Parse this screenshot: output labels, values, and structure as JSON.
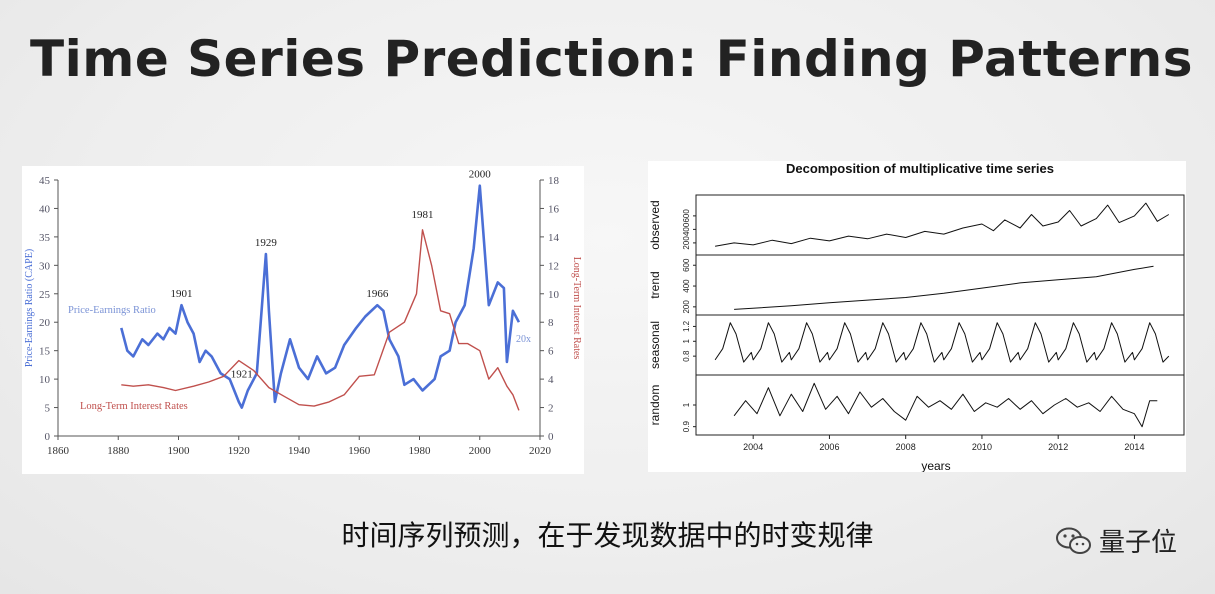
{
  "slide": {
    "title": "Time Series Prediction: Finding Patterns",
    "caption": "时间序列预测，在于发现数据中的时变规律",
    "brand": "量子位",
    "brand_icon": "wechat-icon"
  },
  "chart_data": [
    {
      "type": "line",
      "title": "",
      "xlabel": "",
      "ylabel": "Price-Earnings Ratio (CAPE)",
      "ylabel_right": "Long-Term Interest Rates",
      "xlim": [
        1860,
        2020
      ],
      "ylim": [
        0,
        45
      ],
      "ylim_right": [
        0,
        18
      ],
      "x_ticks": [
        1860,
        1880,
        1900,
        1920,
        1940,
        1960,
        1980,
        2000,
        2020
      ],
      "y_ticks": [
        0,
        5,
        10,
        15,
        20,
        25,
        30,
        35,
        40,
        45
      ],
      "y_ticks_right": [
        0,
        2,
        4,
        6,
        8,
        10,
        12,
        14,
        16,
        18
      ],
      "colors": {
        "pe": "#4b6fd6",
        "rates": "#c0504d"
      },
      "series": [
        {
          "name": "Price-Earnings Ratio",
          "axis": "left",
          "x": [
            1881,
            1883,
            1885,
            1888,
            1890,
            1893,
            1895,
            1897,
            1899,
            1901,
            1903,
            1905,
            1907,
            1909,
            1911,
            1914,
            1917,
            1920,
            1921,
            1923,
            1926,
            1929,
            1930,
            1932,
            1934,
            1937,
            1940,
            1943,
            1946,
            1949,
            1952,
            1955,
            1959,
            1962,
            1966,
            1968,
            1970,
            1973,
            1975,
            1978,
            1981,
            1983,
            1985,
            1987,
            1990,
            1992,
            1995,
            1998,
            2000,
            2002,
            2003,
            2006,
            2008,
            2009,
            2011,
            2013
          ],
          "values": [
            19,
            15,
            14,
            17,
            16,
            18,
            17,
            19,
            18,
            23,
            20,
            18,
            13,
            15,
            14,
            11,
            10,
            6,
            5,
            8,
            11,
            32,
            22,
            6,
            11,
            17,
            12,
            10,
            14,
            11,
            12,
            16,
            19,
            21,
            23,
            22,
            17,
            14,
            9,
            10,
            8,
            9,
            10,
            14,
            15,
            20,
            23,
            33,
            44,
            30,
            23,
            27,
            26,
            13,
            22,
            20
          ]
        },
        {
          "name": "Long-Term Interest Rates",
          "axis": "right",
          "x": [
            1881,
            1885,
            1890,
            1895,
            1899,
            1905,
            1910,
            1915,
            1920,
            1925,
            1930,
            1935,
            1940,
            1945,
            1950,
            1955,
            1960,
            1965,
            1970,
            1975,
            1979,
            1981,
            1984,
            1987,
            1990,
            1993,
            1996,
            2000,
            2003,
            2006,
            2009,
            2011,
            2013
          ],
          "values": [
            3.6,
            3.5,
            3.6,
            3.4,
            3.2,
            3.5,
            3.8,
            4.2,
            5.3,
            4.6,
            3.4,
            2.8,
            2.2,
            2.1,
            2.4,
            2.9,
            4.2,
            4.3,
            7.3,
            8.0,
            10.0,
            14.5,
            12.0,
            8.8,
            8.6,
            6.5,
            6.5,
            6.0,
            4.0,
            4.8,
            3.5,
            2.9,
            1.8
          ]
        }
      ],
      "annotations": [
        {
          "x": 1901,
          "label": "1901"
        },
        {
          "x": 1921,
          "label": "1921"
        },
        {
          "x": 1929,
          "label": "1929"
        },
        {
          "x": 1966,
          "label": "1966"
        },
        {
          "x": 1981,
          "label": "1981"
        },
        {
          "x": 2000,
          "label": "2000"
        }
      ],
      "series_labels": [
        {
          "series": 0,
          "text": "Price-Earnings Ratio"
        },
        {
          "series": 1,
          "text": "Long-Term Interest Rates"
        }
      ],
      "side_label": "20x"
    },
    {
      "type": "line",
      "title": "Decomposition of multiplicative time series",
      "xlabel": "years",
      "xlim": [
        2002.5,
        2015.3
      ],
      "x_ticks": [
        2004,
        2006,
        2008,
        2010,
        2012,
        2014
      ],
      "panels": [
        {
          "name": "observed",
          "ylim": [
            80,
            850
          ],
          "y_ticks": [
            200,
            400,
            600
          ],
          "x": [
            2003.0,
            2003.5,
            2004.0,
            2004.5,
            2005.0,
            2005.5,
            2006.0,
            2006.5,
            2007.0,
            2007.5,
            2008.0,
            2008.5,
            2009.0,
            2009.5,
            2010.0,
            2010.3,
            2010.6,
            2011.0,
            2011.3,
            2011.6,
            2012.0,
            2012.3,
            2012.6,
            2013.0,
            2013.3,
            2013.6,
            2014.0,
            2014.3,
            2014.6,
            2014.9
          ],
          "values": [
            150,
            200,
            170,
            240,
            190,
            270,
            230,
            300,
            260,
            330,
            280,
            370,
            330,
            420,
            480,
            380,
            540,
            420,
            620,
            450,
            510,
            680,
            450,
            560,
            760,
            500,
            600,
            790,
            520,
            620
          ]
        },
        {
          "name": "trend",
          "ylim": [
            160,
            660
          ],
          "y_ticks": [
            200,
            400,
            600
          ],
          "x": [
            2003.5,
            2005.0,
            2006.0,
            2007.0,
            2008.0,
            2009.0,
            2010.0,
            2011.0,
            2012.0,
            2013.0,
            2014.0,
            2014.5
          ],
          "values": [
            175,
            210,
            240,
            265,
            290,
            330,
            380,
            430,
            460,
            490,
            560,
            590
          ]
        },
        {
          "name": "seasonal",
          "ylim": [
            0.6,
            1.3
          ],
          "y_ticks": [
            0.8,
            1.0,
            1.2
          ],
          "x": [
            2003.0,
            2003.2,
            2003.4,
            2003.55,
            2003.75,
            2003.95,
            2004.0,
            2004.2,
            2004.4,
            2004.55,
            2004.75,
            2004.95,
            2005.0,
            2005.2,
            2005.4,
            2005.55,
            2005.75,
            2005.95,
            2006.0,
            2006.2,
            2006.4,
            2006.55,
            2006.75,
            2006.95,
            2007.0,
            2007.2,
            2007.4,
            2007.55,
            2007.75,
            2007.95,
            2008.0,
            2008.2,
            2008.4,
            2008.55,
            2008.75,
            2008.95,
            2009.0,
            2009.2,
            2009.4,
            2009.55,
            2009.75,
            2009.95,
            2010.0,
            2010.2,
            2010.4,
            2010.55,
            2010.75,
            2010.95,
            2011.0,
            2011.2,
            2011.4,
            2011.55,
            2011.75,
            2011.95,
            2012.0,
            2012.2,
            2012.4,
            2012.55,
            2012.75,
            2012.95,
            2013.0,
            2013.2,
            2013.4,
            2013.55,
            2013.75,
            2013.95,
            2014.0,
            2014.2,
            2014.4,
            2014.55,
            2014.75,
            2014.9
          ],
          "values": [
            0.75,
            0.9,
            1.25,
            1.1,
            0.72,
            0.85,
            0.75,
            0.9,
            1.25,
            1.1,
            0.72,
            0.85,
            0.75,
            0.9,
            1.25,
            1.1,
            0.72,
            0.85,
            0.75,
            0.9,
            1.25,
            1.1,
            0.72,
            0.85,
            0.75,
            0.9,
            1.25,
            1.1,
            0.72,
            0.85,
            0.75,
            0.9,
            1.25,
            1.1,
            0.72,
            0.85,
            0.75,
            0.9,
            1.25,
            1.1,
            0.72,
            0.85,
            0.75,
            0.9,
            1.25,
            1.1,
            0.72,
            0.85,
            0.75,
            0.9,
            1.25,
            1.1,
            0.72,
            0.85,
            0.75,
            0.9,
            1.25,
            1.1,
            0.72,
            0.85,
            0.75,
            0.9,
            1.25,
            1.1,
            0.72,
            0.85,
            0.75,
            0.9,
            1.25,
            1.1,
            0.72,
            0.8
          ]
        },
        {
          "name": "random",
          "ylim": [
            0.88,
            1.12
          ],
          "y_ticks": [
            0.9,
            1.0
          ],
          "x": [
            2003.5,
            2003.8,
            2004.1,
            2004.4,
            2004.7,
            2005.0,
            2005.3,
            2005.6,
            2005.9,
            2006.2,
            2006.5,
            2006.8,
            2007.1,
            2007.4,
            2007.7,
            2008.0,
            2008.3,
            2008.6,
            2008.9,
            2009.2,
            2009.5,
            2009.8,
            2010.1,
            2010.4,
            2010.7,
            2011.0,
            2011.3,
            2011.6,
            2011.9,
            2012.2,
            2012.5,
            2012.8,
            2013.1,
            2013.4,
            2013.7,
            2014.0,
            2014.2,
            2014.4,
            2014.6
          ],
          "values": [
            0.95,
            1.02,
            0.96,
            1.08,
            0.95,
            1.05,
            0.97,
            1.1,
            0.98,
            1.04,
            0.96,
            1.06,
            0.99,
            1.03,
            0.97,
            0.93,
            1.04,
            0.99,
            1.02,
            0.98,
            1.05,
            0.97,
            1.01,
            0.99,
            1.03,
            0.98,
            1.02,
            0.96,
            1.0,
            1.03,
            0.99,
            1.01,
            0.97,
            1.04,
            0.98,
            0.96,
            0.9,
            1.02,
            1.02
          ]
        }
      ]
    }
  ]
}
